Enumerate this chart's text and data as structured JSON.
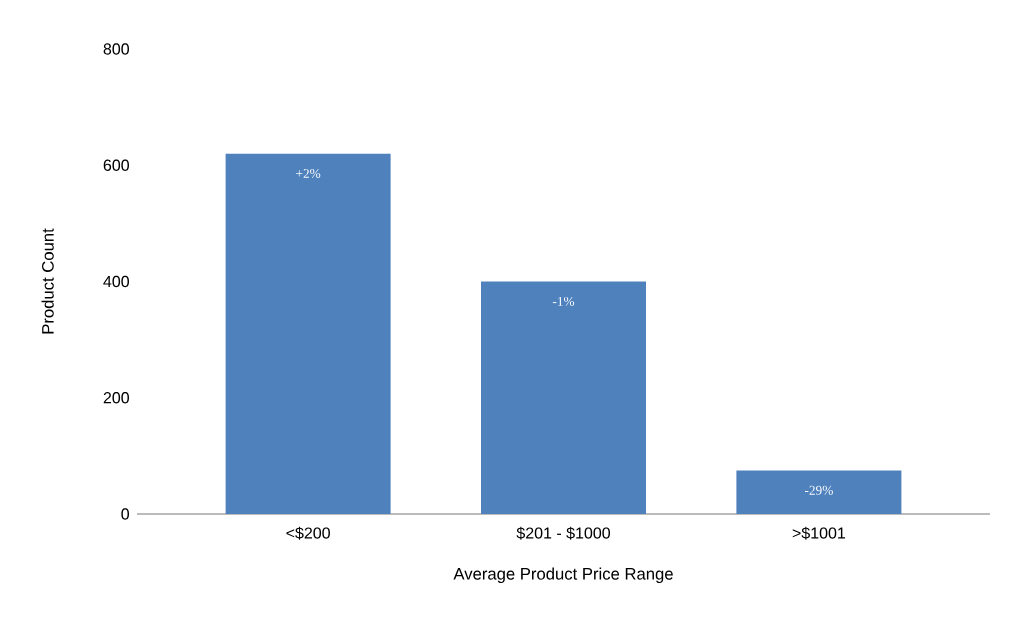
{
  "chart_data": {
    "type": "bar",
    "xlabel": "Average Product Price Range",
    "ylabel": "Product Count",
    "categories": [
      "<$200",
      "$201 - $1000",
      ">$1001"
    ],
    "values": [
      620,
      400,
      75
    ],
    "annotations": [
      {
        "text": "+2%",
        "x": "<$200",
        "y": 620
      },
      {
        "text": "-1%",
        "x": "$201 - $1000",
        "y": 400
      },
      {
        "text": "-29%",
        "x": ">$1001",
        "y": 75
      }
    ],
    "color": "#4f81bd",
    "ylim": [
      0,
      800
    ],
    "yticks": [
      0,
      200,
      400,
      600,
      800
    ]
  }
}
